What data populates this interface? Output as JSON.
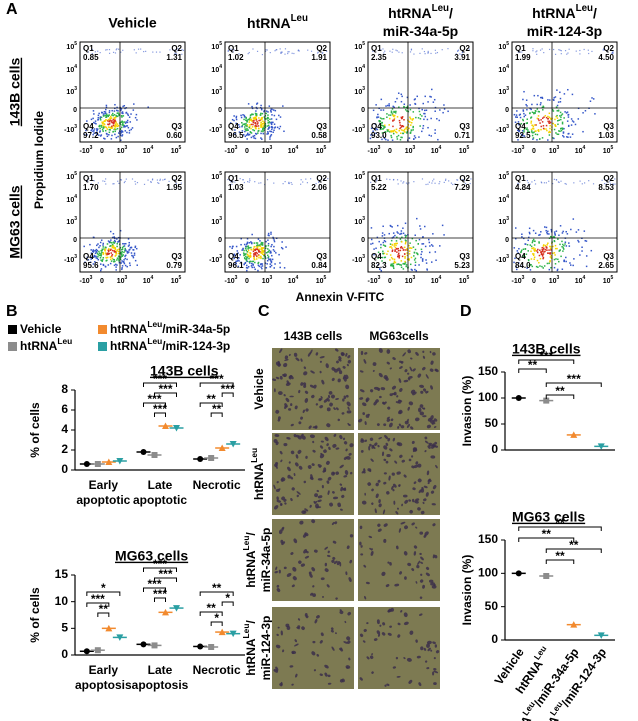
{
  "panel_a": {
    "label": "A",
    "columns": [
      "Vehicle",
      [
        "htRNA",
        {
          "sup": "Leu"
        }
      ],
      [
        [
          "htRNA",
          {
            "sup": "Leu"
          },
          "/"
        ],
        [
          "miR-34a-5p"
        ]
      ],
      [
        [
          "htRNA",
          {
            "sup": "Leu"
          },
          "/"
        ],
        [
          "miR-124-3p"
        ]
      ]
    ],
    "rows": [
      "143B cells",
      "MG63 cells"
    ],
    "y_label": "Propidium Iodide",
    "x_label": "Annexin V-FITC",
    "quadrant_names": [
      "Q1",
      "Q2",
      "Q3",
      "Q4"
    ],
    "y_ticks": [
      {
        "base": "10",
        "exp": "5"
      },
      {
        "base": "10",
        "exp": "4"
      },
      {
        "base": "10",
        "exp": "3"
      },
      "0",
      {
        "base": "-10",
        "exp": "3"
      }
    ],
    "x_ticks": [
      {
        "base": "-10",
        "exp": "3"
      },
      "0",
      {
        "base": "10",
        "exp": "3"
      },
      {
        "base": "10",
        "exp": "4"
      },
      {
        "base": "10",
        "exp": "5"
      }
    ],
    "plots": [
      [
        [
          "0.85",
          "1.31",
          "0.60",
          "97.2"
        ],
        [
          "1.02",
          "1.91",
          "0.58",
          "96.5"
        ],
        [
          "2.35",
          "3.91",
          "0.71",
          "93.0"
        ],
        [
          "1.99",
          "4.50",
          "1.03",
          "92.5"
        ]
      ],
      [
        [
          "1.70",
          "1.95",
          "0.79",
          "95.6"
        ],
        [
          "1.03",
          "2.06",
          "0.84",
          "96.1"
        ],
        [
          "5.22",
          "7.29",
          "5.23",
          "82.3"
        ],
        [
          "4.84",
          "8.53",
          "2.65",
          "84.0"
        ]
      ]
    ]
  },
  "panel_b": {
    "label": "B"
  },
  "panel_c": {
    "label": "C",
    "columns": [
      "143B cells",
      "MG63cells"
    ],
    "rows": [
      "Vehicle",
      [
        "htRNA",
        {
          "sup": "Leu"
        }
      ],
      [
        [
          "htRNA",
          {
            "sup": "Leu"
          },
          "/"
        ],
        [
          "miR-34a-5p"
        ]
      ],
      [
        [
          "htRNA",
          {
            "sup": "Leu"
          },
          "/"
        ],
        [
          "miR-124-3p"
        ]
      ]
    ]
  },
  "panel_d": {
    "label": "D"
  },
  "chart_data": [
    {
      "type": "dot",
      "title": "143B cells",
      "y_label": "% of cells",
      "categories": [
        [
          [
            "Early"
          ],
          [
            "apoptotic"
          ]
        ],
        [
          [
            "Late"
          ],
          [
            "apoptotic"
          ]
        ],
        [
          [
            "Necrotic"
          ]
        ]
      ],
      "ylim": [
        0,
        8
      ],
      "yticks": [
        0,
        2,
        4,
        6,
        8
      ],
      "series": [
        {
          "name": [
            "Vehicle"
          ],
          "color": "#000000",
          "values": [
            0.6,
            1.8,
            1.1
          ]
        },
        {
          "name": [
            "htRNA",
            {
              "sup": "Leu"
            }
          ],
          "color": "#8c8c8c",
          "values": [
            0.6,
            1.5,
            1.2
          ]
        },
        {
          "name": [
            "htRNA",
            {
              "sup": "Leu"
            },
            "/miR-34a-5p"
          ],
          "color": "#f28a2e",
          "values": [
            0.8,
            4.4,
            2.2
          ]
        },
        {
          "name": [
            "htRNA",
            {
              "sup": "Leu"
            },
            "/miR-124-3p"
          ],
          "color": "#2a9fa3",
          "values": [
            0.9,
            4.2,
            2.6
          ]
        }
      ],
      "annotations": [
        "***",
        "***",
        "***",
        "***",
        "***",
        "***",
        "**",
        "**"
      ]
    },
    {
      "type": "dot",
      "title": "MG63 cells",
      "y_label": "% of cells",
      "categories": [
        [
          [
            "Early"
          ],
          [
            "apoptosis"
          ]
        ],
        [
          [
            "Late"
          ],
          [
            "apoptosis"
          ]
        ],
        [
          [
            "Necrotic"
          ]
        ]
      ],
      "ylim": [
        0,
        15
      ],
      "yticks": [
        0,
        5,
        10,
        15
      ],
      "series": [
        {
          "color": "#000000",
          "values": [
            0.7,
            2.0,
            1.6
          ]
        },
        {
          "color": "#8c8c8c",
          "values": [
            0.9,
            1.8,
            1.5
          ]
        },
        {
          "color": "#f28a2e",
          "values": [
            5.0,
            8.0,
            4.3
          ]
        },
        {
          "color": "#2a9fa3",
          "values": [
            3.3,
            8.8,
            4.0
          ]
        }
      ],
      "annotations": [
        "*",
        "***",
        "**",
        "***",
        "***",
        "***",
        "***",
        "**",
        "*",
        "**",
        "*"
      ]
    },
    {
      "type": "dot",
      "title": "143B cells",
      "y_label": "Invasion (%)",
      "ylim": [
        0,
        150
      ],
      "yticks": [
        0,
        50,
        100,
        150
      ],
      "values": [
        100,
        95,
        29,
        7
      ],
      "colors": [
        "#000000",
        "#8c8c8c",
        "#f28a2e",
        "#2a9fa3"
      ],
      "annotations": [
        "***",
        "**",
        "***",
        "**"
      ]
    },
    {
      "type": "dot",
      "title": "MG63 cells",
      "y_label": "Invasion (%)",
      "categories": [
        "Vehicle",
        [
          "htRNA",
          {
            "sup": "Leu"
          }
        ],
        [
          "htRNA",
          {
            "sup": "Leu"
          },
          "/miR-34a-5p"
        ],
        [
          "htRNA",
          {
            "sup": "Leu"
          },
          "/miR-124-3p"
        ]
      ],
      "ylim": [
        0,
        150
      ],
      "yticks": [
        0,
        50,
        100,
        150
      ],
      "values": [
        100,
        96,
        23,
        7
      ],
      "colors": [
        "#000000",
        "#8c8c8c",
        "#f28a2e",
        "#2a9fa3"
      ],
      "annotations": [
        "**",
        "**",
        "**",
        "**"
      ]
    }
  ]
}
